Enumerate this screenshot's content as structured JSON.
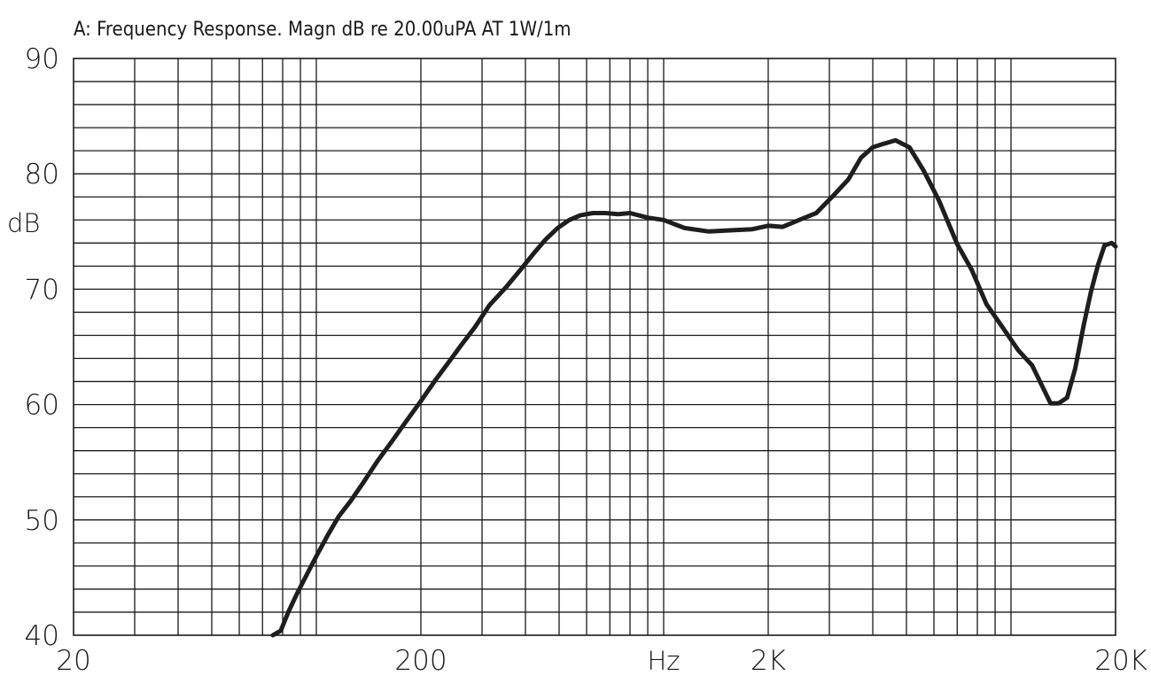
{
  "chart_data": {
    "type": "line",
    "title": "A: Frequency Response. Magn dB re 20.00uPA AT 1W/1m",
    "xlabel": "Hz",
    "ylabel": "dB",
    "x_scale": "log",
    "xlim": [
      20,
      20000
    ],
    "ylim": [
      40,
      90
    ],
    "x_ticks": [
      {
        "value": 20,
        "label": "20"
      },
      {
        "value": 200,
        "label": "200"
      },
      {
        "value": 2000,
        "label": "2K"
      },
      {
        "value": 20000,
        "label": "20K"
      }
    ],
    "y_ticks": [
      {
        "value": 90,
        "label": "90"
      },
      {
        "value": 80,
        "label": "80"
      },
      {
        "value": 70,
        "label": "70"
      },
      {
        "value": 60,
        "label": "60"
      },
      {
        "value": 50,
        "label": "50"
      },
      {
        "value": 40,
        "label": "40"
      }
    ],
    "grid": true,
    "series": [
      {
        "color": "#1e1e1e",
        "x": [
          75,
          79,
          83,
          88,
          94,
          101,
          108,
          116,
          126,
          137,
          150,
          165,
          182,
          200,
          220,
          241,
          262,
          286,
          315,
          350,
          385,
          420,
          457,
          495,
          535,
          575,
          625,
          680,
          740,
          800,
          900,
          1000,
          1150,
          1350,
          1550,
          1800,
          2000,
          2200,
          2500,
          2750,
          3100,
          3400,
          3700,
          4000,
          4300,
          4650,
          5100,
          5600,
          6200,
          7000,
          7700,
          8500,
          9400,
          10500,
          11500,
          12300,
          13000,
          13700,
          14500,
          15300,
          16200,
          17000,
          17800,
          18600,
          19500,
          20000
        ],
        "y": [
          40.0,
          40.4,
          42.0,
          43.6,
          45.3,
          47.1,
          48.7,
          50.3,
          51.7,
          53.3,
          55.1,
          56.8,
          58.6,
          60.3,
          62.1,
          63.7,
          65.2,
          66.7,
          68.6,
          70.1,
          71.6,
          73.0,
          74.3,
          75.3,
          76.0,
          76.4,
          76.6,
          76.6,
          76.5,
          76.6,
          76.2,
          76.0,
          75.3,
          75.0,
          75.1,
          75.2,
          75.5,
          75.4,
          76.1,
          76.6,
          78.2,
          79.5,
          81.4,
          82.3,
          82.6,
          82.9,
          82.3,
          80.3,
          77.7,
          73.9,
          71.7,
          68.7,
          66.8,
          64.7,
          63.4,
          61.6,
          60.1,
          60.1,
          60.6,
          63.1,
          66.9,
          69.8,
          72.1,
          73.8,
          74.0,
          73.7
        ]
      }
    ]
  }
}
